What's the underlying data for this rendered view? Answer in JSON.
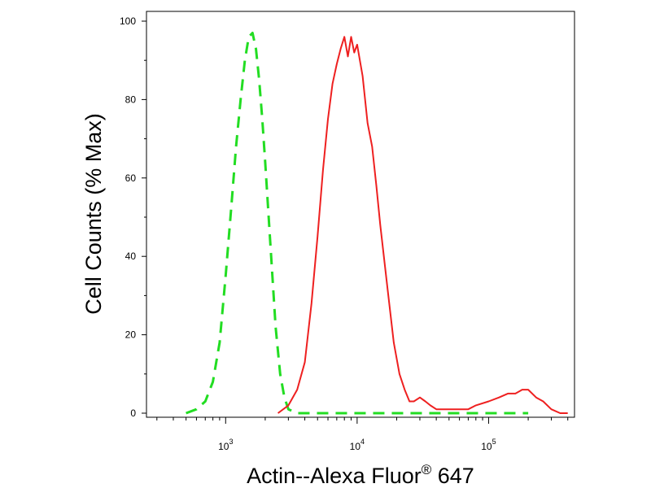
{
  "chart_data": {
    "type": "line",
    "xlabel": "Actin--Alexa Fluor",
    "xlabel_superscript": "®",
    "xlabel_suffix": " 647",
    "ylabel": "Cell Counts (% Max)",
    "xscale": "log",
    "xlim": [
      250,
      450000
    ],
    "ylim": [
      0,
      100
    ],
    "y_ticks": [
      "0",
      "20",
      "40",
      "60",
      "80",
      "100"
    ],
    "x_ticks": [
      {
        "value": 1000,
        "base": "10",
        "exp": "3"
      },
      {
        "value": 10000,
        "base": "10",
        "exp": "4"
      },
      {
        "value": 100000,
        "base": "10",
        "exp": "5"
      }
    ],
    "grid": false,
    "legend": false,
    "series": [
      {
        "color": "#22dd22",
        "style": "dashed",
        "x": [
          500,
          600,
          700,
          800,
          900,
          1000,
          1100,
          1200,
          1300,
          1400,
          1500,
          1600,
          1700,
          1800,
          1900,
          2000,
          2200,
          2400,
          2600,
          2800,
          3000,
          3500,
          5000,
          10000,
          50000,
          200000
        ],
        "y": [
          0,
          1,
          3,
          8,
          18,
          35,
          52,
          68,
          80,
          90,
          96,
          97,
          93,
          85,
          75,
          64,
          42,
          22,
          10,
          4,
          1,
          0,
          0,
          0,
          0,
          0
        ]
      },
      {
        "color": "#ee2020",
        "style": "solid",
        "x": [
          2500,
          3000,
          3500,
          4000,
          4500,
          5000,
          5500,
          6000,
          6500,
          7000,
          7500,
          8000,
          8500,
          9000,
          9500,
          10000,
          11000,
          12000,
          13000,
          14000,
          15000,
          17000,
          19000,
          21000,
          23000,
          25000,
          27000,
          30000,
          33000,
          36000,
          40000,
          50000,
          60000,
          70000,
          80000,
          100000,
          120000,
          140000,
          160000,
          180000,
          200000,
          230000,
          260000,
          300000,
          350000,
          400000
        ],
        "y": [
          0,
          2,
          6,
          13,
          28,
          45,
          62,
          75,
          84,
          89,
          93,
          96,
          91,
          96,
          92,
          94,
          86,
          74,
          68,
          58,
          48,
          32,
          18,
          10,
          6,
          3,
          3,
          4,
          3,
          2,
          1,
          1,
          1,
          1,
          2,
          3,
          4,
          5,
          5,
          6,
          6,
          4,
          3,
          1,
          0,
          0
        ]
      }
    ]
  }
}
